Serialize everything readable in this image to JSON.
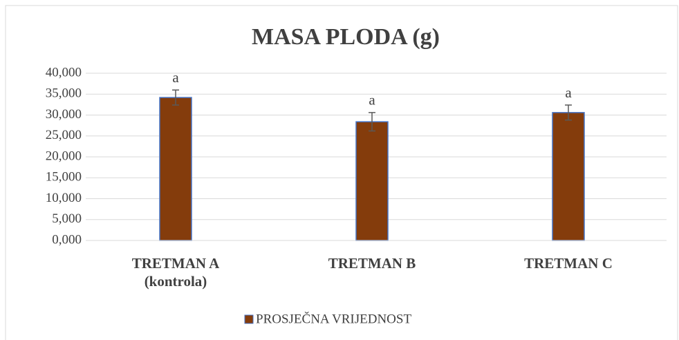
{
  "chart_data": {
    "type": "bar",
    "title": "MASA PLODA (g)",
    "categories": [
      "TRETMAN A\n(kontrola)",
      "TRETMAN B",
      "TRETMAN C"
    ],
    "series": [
      {
        "name": "PROSJEČNA VRIJEDNOST",
        "color": "#843c0c",
        "edge": "#4472c4",
        "values": [
          34.2,
          28.4,
          30.6
        ],
        "errors": [
          1.8,
          2.2,
          1.8
        ],
        "annotations": [
          "a",
          "a",
          "a"
        ]
      }
    ],
    "ylim": [
      0,
      40
    ],
    "yticks": [
      {
        "value": 0,
        "label": "0,000"
      },
      {
        "value": 5,
        "label": "5,000"
      },
      {
        "value": 10,
        "label": "10,000"
      },
      {
        "value": 15,
        "label": "15,000"
      },
      {
        "value": 20,
        "label": "20,000"
      },
      {
        "value": 25,
        "label": "25,000"
      },
      {
        "value": 30,
        "label": "30,000"
      },
      {
        "value": 35,
        "label": "35,000"
      },
      {
        "value": 40,
        "label": "40,000"
      }
    ],
    "grid": true,
    "legend": "bottom"
  }
}
